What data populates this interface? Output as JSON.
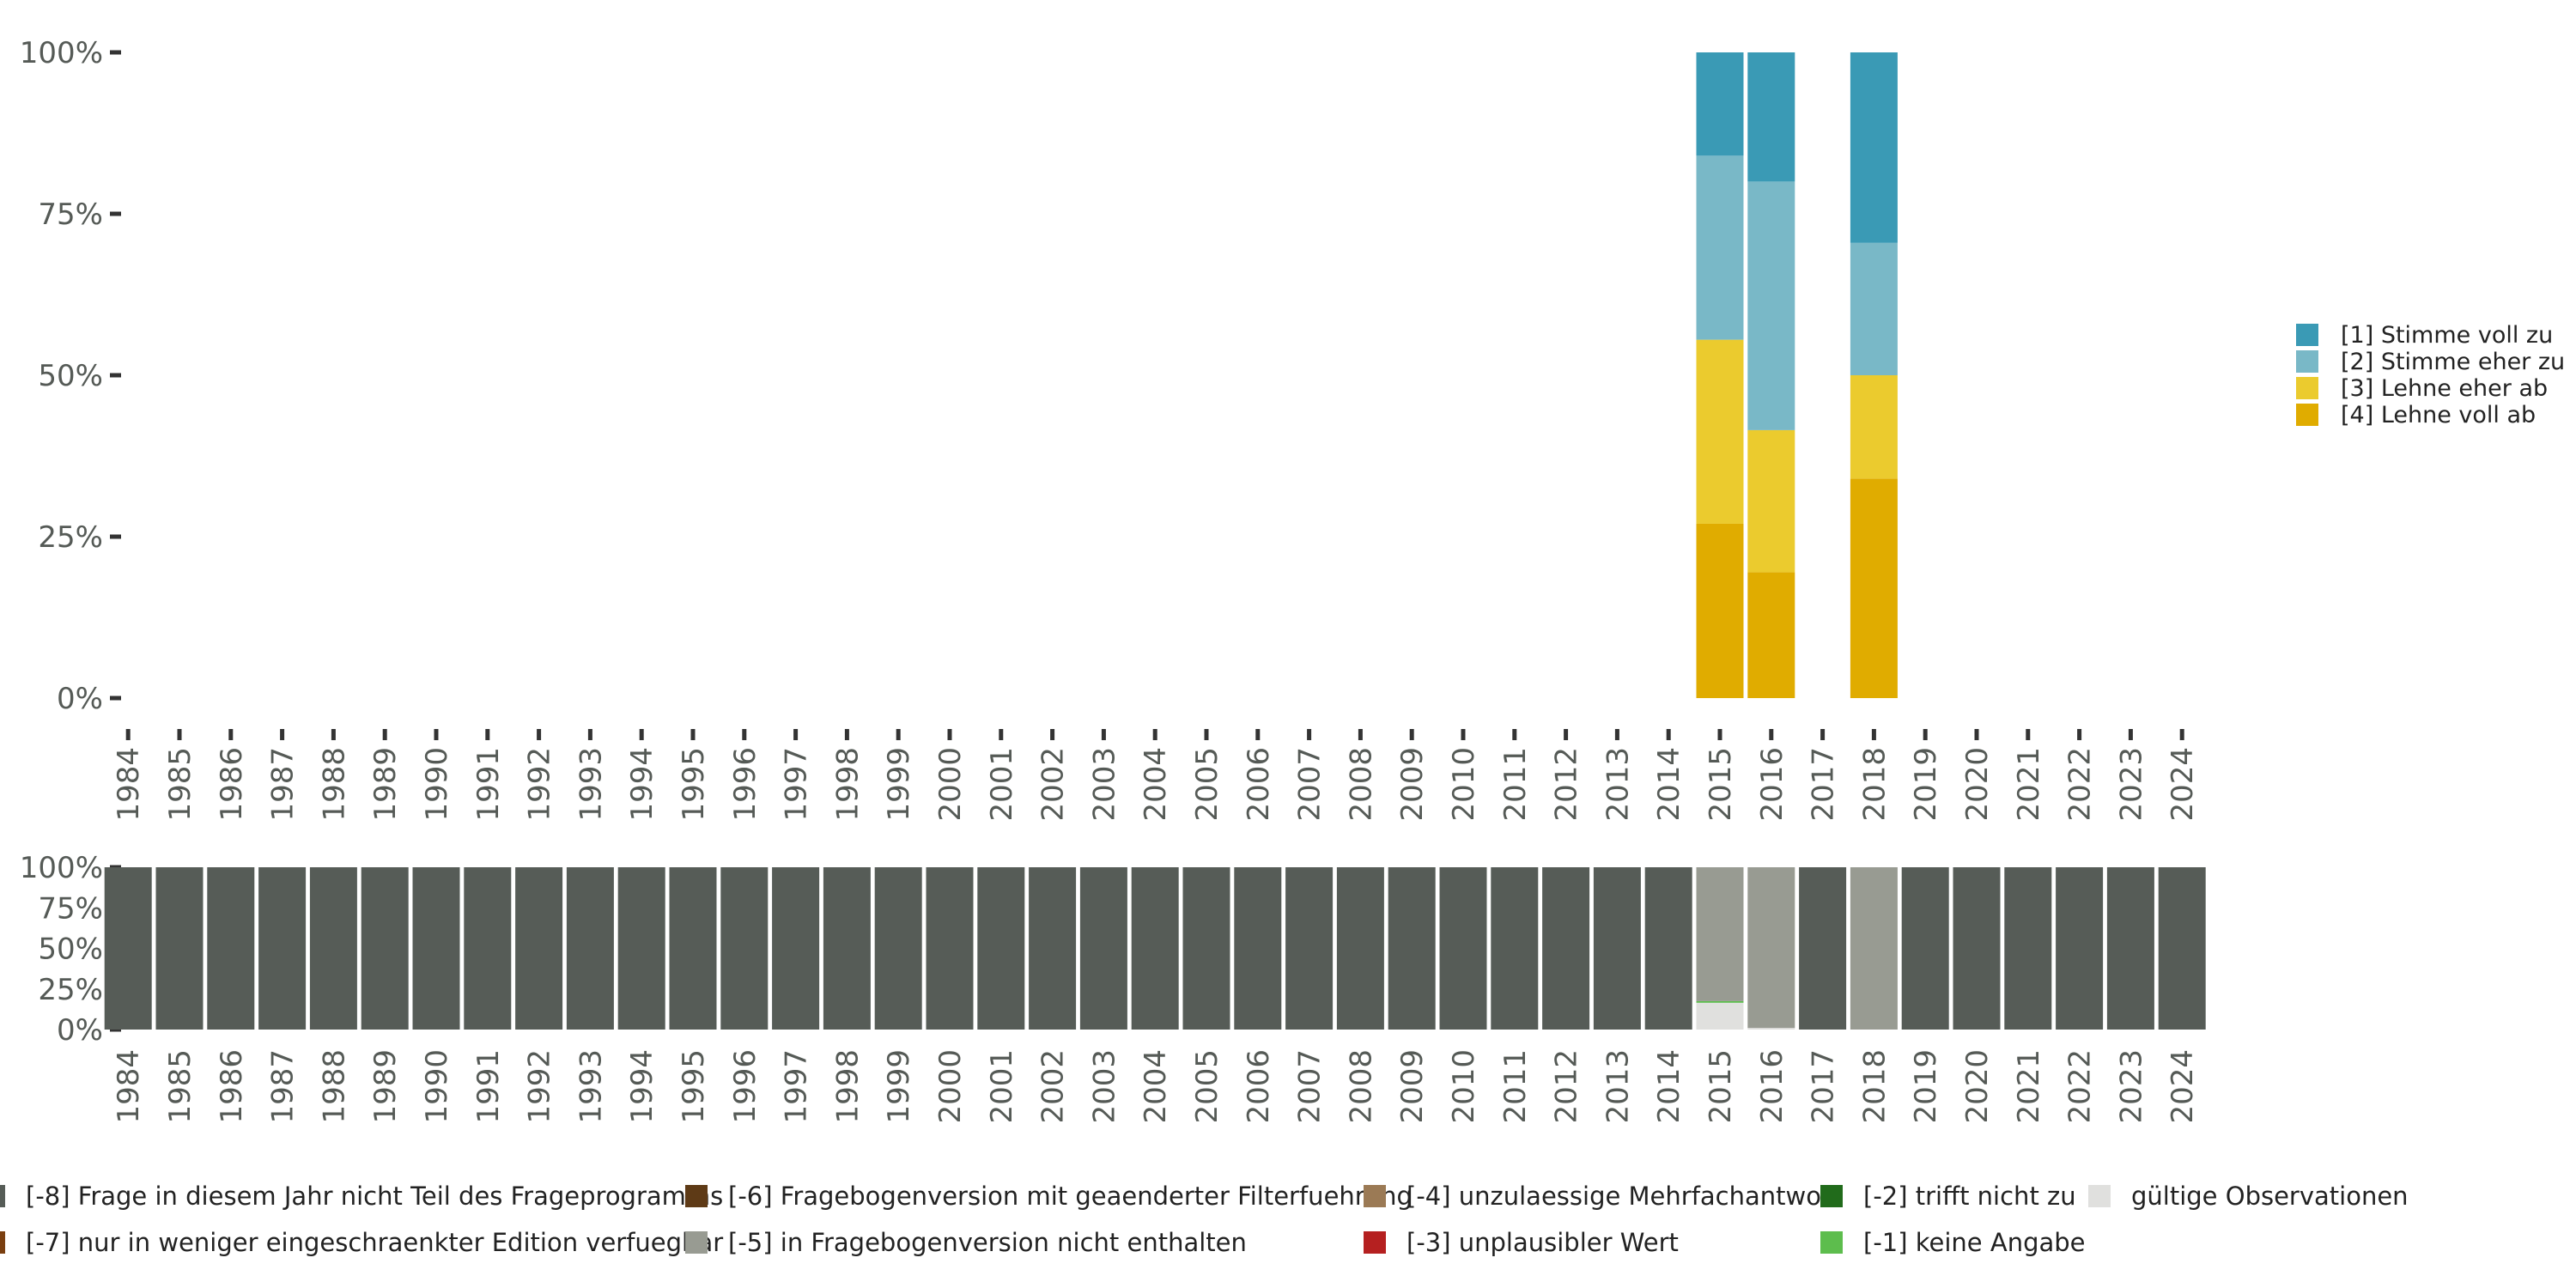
{
  "chart_data": [
    {
      "type": "bar",
      "stacked": true,
      "title": "",
      "xlabel": "",
      "ylabel": "",
      "ylim": [
        0,
        100
      ],
      "y_ticks": [
        "0%",
        "25%",
        "50%",
        "75%",
        "100%"
      ],
      "categories": [
        "1984",
        "1985",
        "1986",
        "1987",
        "1988",
        "1989",
        "1990",
        "1991",
        "1992",
        "1993",
        "1994",
        "1995",
        "1996",
        "1997",
        "1998",
        "1999",
        "2000",
        "2001",
        "2002",
        "2003",
        "2004",
        "2005",
        "2006",
        "2007",
        "2008",
        "2009",
        "2010",
        "2011",
        "2012",
        "2013",
        "2014",
        "2015",
        "2016",
        "2017",
        "2018",
        "2019",
        "2020",
        "2021",
        "2022",
        "2023",
        "2024"
      ],
      "legend_position": "right",
      "series": [
        {
          "name": "[4] Lehne voll ab",
          "color": "#e0ac00",
          "values": {
            "2015": 27,
            "2016": 19.5,
            "2018": 34
          }
        },
        {
          "name": "[3] Lehne eher ab",
          "color": "#ebcb2e",
          "values": {
            "2015": 28.5,
            "2016": 22,
            "2018": 16
          }
        },
        {
          "name": "[2] Stimme eher zu",
          "color": "#79b8c7",
          "values": {
            "2015": 28.5,
            "2016": 38.5,
            "2018": 20.5
          }
        },
        {
          "name": "[1] Stimme voll zu",
          "color": "#3a9ab5",
          "values": {
            "2015": 16,
            "2016": 20,
            "2018": 29.5
          }
        }
      ]
    },
    {
      "type": "bar",
      "stacked": true,
      "title": "",
      "xlabel": "",
      "ylabel": "",
      "ylim": [
        0,
        100
      ],
      "y_ticks": [
        "0%",
        "25%",
        "50%",
        "75%",
        "100%"
      ],
      "categories": [
        "1984",
        "1985",
        "1986",
        "1987",
        "1988",
        "1989",
        "1990",
        "1991",
        "1992",
        "1993",
        "1994",
        "1995",
        "1996",
        "1997",
        "1998",
        "1999",
        "2000",
        "2001",
        "2002",
        "2003",
        "2004",
        "2005",
        "2006",
        "2007",
        "2008",
        "2009",
        "2010",
        "2011",
        "2012",
        "2013",
        "2014",
        "2015",
        "2016",
        "2017",
        "2018",
        "2019",
        "2020",
        "2021",
        "2022",
        "2023",
        "2024"
      ],
      "legend_position": "bottom",
      "series": [
        {
          "name": "gültige Observationen",
          "color": "#e0e0de",
          "values": {
            "2015": 16.5,
            "2016": 1,
            "2018": 0
          }
        },
        {
          "name": "[-1] keine Angabe",
          "color": "#5dbd4d",
          "values": {
            "2015": 1
          }
        },
        {
          "name": "[-2] trifft nicht zu",
          "color": "#216b1b",
          "values": {}
        },
        {
          "name": "[-3] unplausibler Wert",
          "color": "#b52020",
          "values": {}
        },
        {
          "name": "[-4] unzulaessige Mehrfachantwort",
          "color": "#9b7a55",
          "values": {}
        },
        {
          "name": "[-5] in Fragebogenversion nicht enthalten",
          "color": "#989b92",
          "values": {
            "2015": 82.5,
            "2016": 99,
            "2018": 100
          }
        },
        {
          "name": "[-6] Fragebogenversion mit geaenderter Filterfuehrung",
          "color": "#5e3a16",
          "values": {}
        },
        {
          "name": "[-7] nur in weniger eingeschraenkter Edition verfuegbar",
          "color": "#7a3f10",
          "values": {}
        },
        {
          "name": "[-8] Frage in diesem Jahr nicht Teil des Frageprogramms",
          "color": "#565c57",
          "values": {
            "1984": 100,
            "1985": 100,
            "1986": 100,
            "1987": 100,
            "1988": 100,
            "1989": 100,
            "1990": 100,
            "1991": 100,
            "1992": 100,
            "1993": 100,
            "1994": 100,
            "1995": 100,
            "1996": 100,
            "1997": 100,
            "1998": 100,
            "1999": 100,
            "2000": 100,
            "2001": 100,
            "2002": 100,
            "2003": 100,
            "2004": 100,
            "2005": 100,
            "2006": 100,
            "2007": 100,
            "2008": 100,
            "2009": 100,
            "2010": 100,
            "2011": 100,
            "2012": 100,
            "2013": 100,
            "2014": 100,
            "2017": 100,
            "2019": 100,
            "2020": 100,
            "2021": 100,
            "2022": 100,
            "2023": 100,
            "2024": 100
          }
        }
      ]
    }
  ]
}
